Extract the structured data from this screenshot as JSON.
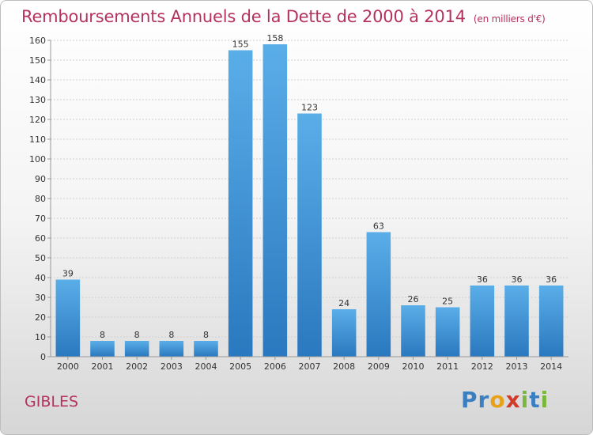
{
  "title": "Remboursements Annuels de la Dette de 2000 à 2014",
  "subtitle": "(en milliers d'€)",
  "commune": "GIBLES",
  "logo": {
    "text": "Proxiti",
    "letters": [
      "P",
      "r",
      "o",
      "x",
      "i",
      "t",
      "i"
    ],
    "colors": [
      "#3a7fc1",
      "#3a7fc1",
      "#e8a21a",
      "#d23a2a",
      "#7ab83b",
      "#3a7fc1",
      "#7ab83b"
    ]
  },
  "chart_data": {
    "type": "bar",
    "title": "Remboursements Annuels de la Dette de 2000 à 2014",
    "subtitle": "(en milliers d'€)",
    "categories": [
      "2000",
      "2001",
      "2002",
      "2003",
      "2004",
      "2005",
      "2006",
      "2007",
      "2008",
      "2009",
      "2010",
      "2011",
      "2012",
      "2013",
      "2014"
    ],
    "values": [
      39,
      8,
      8,
      8,
      8,
      155,
      158,
      123,
      24,
      63,
      26,
      25,
      36,
      36,
      36
    ],
    "ylim": [
      0,
      160
    ],
    "yticks": [
      0,
      10,
      20,
      30,
      40,
      50,
      60,
      70,
      80,
      90,
      100,
      110,
      120,
      130,
      140,
      150,
      160
    ],
    "grid": true,
    "bar_color": "#3d8fd6"
  }
}
